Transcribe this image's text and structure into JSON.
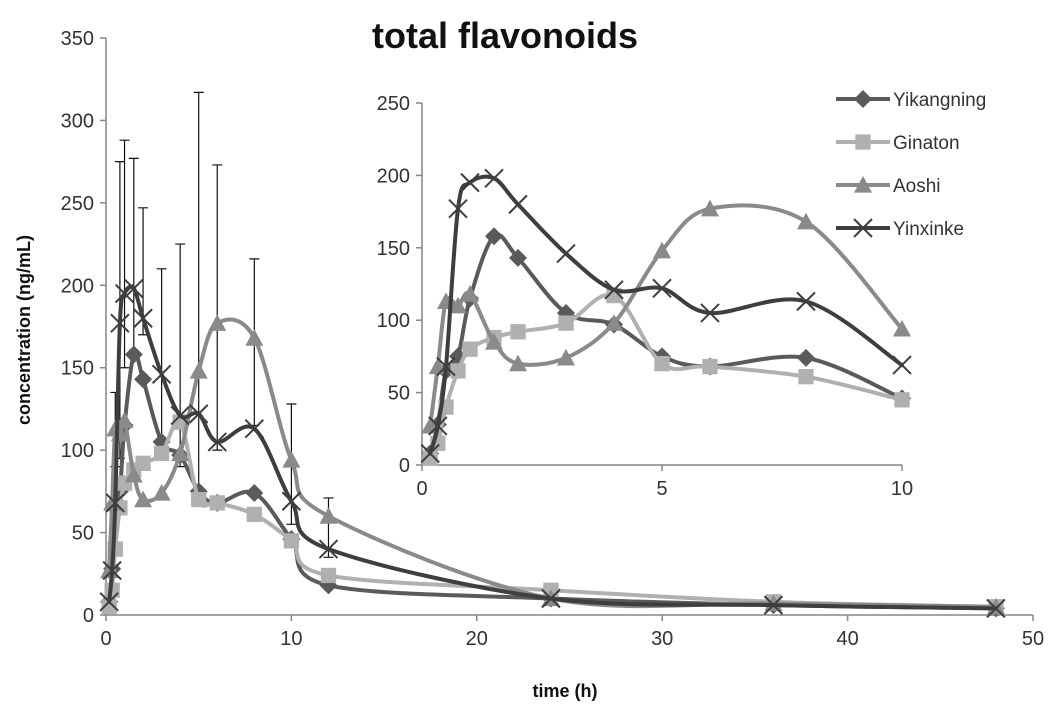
{
  "chart_data": [
    {
      "type": "line",
      "title": "total flavonoids",
      "xlabel": "time (h)",
      "ylabel": "concentration  (ng/mL)",
      "xlim": [
        0,
        50
      ],
      "ylim": [
        0,
        350
      ],
      "x_ticks": [
        "0",
        "10",
        "20",
        "30",
        "40",
        "50"
      ],
      "y_ticks": [
        "0",
        "50",
        "100",
        "150",
        "200",
        "250",
        "300",
        "350"
      ],
      "grid": false,
      "series": [
        {
          "name": "Yikangning",
          "marker": "diamond",
          "color": "#5a5a5a",
          "x": [
            0.17,
            0.33,
            0.5,
            0.75,
            1,
            1.5,
            2,
            3,
            4,
            5,
            6,
            8,
            10,
            12,
            24,
            36,
            48
          ],
          "y": [
            8,
            28,
            65,
            75,
            115,
            158,
            143,
            105,
            97,
            75,
            68,
            74,
            46,
            18,
            10,
            6,
            4
          ]
        },
        {
          "name": "Ginaton",
          "marker": "square",
          "color": "#b0b0b0",
          "x": [
            0.17,
            0.33,
            0.5,
            0.75,
            1,
            1.5,
            2,
            3,
            4,
            5,
            6,
            8,
            10,
            12,
            24,
            36,
            48
          ],
          "y": [
            5,
            15,
            40,
            65,
            80,
            88,
            92,
            98,
            117,
            70,
            68,
            61,
            45,
            24,
            15,
            8,
            5
          ]
        },
        {
          "name": "Aoshi",
          "marker": "triangle",
          "color": "#8a8a8a",
          "x": [
            0.17,
            0.33,
            0.5,
            0.75,
            1,
            1.5,
            2,
            3,
            4,
            5,
            6,
            8,
            10,
            12,
            24,
            36,
            48
          ],
          "y": [
            27,
            68,
            113,
            110,
            118,
            85,
            70,
            74,
            98,
            148,
            177,
            168,
            94,
            60,
            10,
            7,
            5
          ]
        },
        {
          "name": "Yinxinke",
          "marker": "x",
          "color": "#3e3e3e",
          "x": [
            0.17,
            0.33,
            0.5,
            0.75,
            1,
            1.5,
            2,
            3,
            4,
            5,
            6,
            8,
            10,
            12,
            24,
            36,
            48
          ],
          "y": [
            8,
            27,
            68,
            177,
            195,
            198,
            180,
            146,
            121,
            122,
            105,
            113,
            69,
            40,
            10,
            6,
            4
          ]
        }
      ],
      "error_bars": [
        {
          "x": 0.5,
          "low": 90,
          "high": 135
        },
        {
          "x": 0.75,
          "low": 95,
          "high": 275
        },
        {
          "x": 1,
          "low": 150,
          "high": 288
        },
        {
          "x": 1.5,
          "low": 160,
          "high": 277
        },
        {
          "x": 2,
          "low": 170,
          "high": 247
        },
        {
          "x": 3,
          "low": 95,
          "high": 210
        },
        {
          "x": 4,
          "low": 90,
          "high": 225
        },
        {
          "x": 5,
          "low": 75,
          "high": 317
        },
        {
          "x": 6,
          "low": 100,
          "high": 273
        },
        {
          "x": 8,
          "low": 115,
          "high": 216
        },
        {
          "x": 10,
          "low": 55,
          "high": 128
        },
        {
          "x": 12,
          "low": 35,
          "high": 71
        }
      ]
    },
    {
      "type": "line",
      "title": "",
      "xlabel": "",
      "ylabel": "",
      "xlim": [
        0,
        10
      ],
      "ylim": [
        0,
        250
      ],
      "x_ticks": [
        "0",
        "5",
        "10"
      ],
      "y_ticks": [
        "0",
        "50",
        "100",
        "150",
        "200",
        "250"
      ],
      "grid": false,
      "legend": {
        "position": "top-right",
        "entries": [
          "Yikangning",
          "Ginaton",
          "Aoshi",
          "Yinxinke"
        ]
      },
      "series": [
        {
          "name": "Yikangning",
          "marker": "diamond",
          "color": "#5a5a5a",
          "x": [
            0.17,
            0.33,
            0.5,
            0.75,
            1,
            1.5,
            2,
            3,
            4,
            5,
            6,
            8,
            10
          ],
          "y": [
            8,
            28,
            65,
            75,
            115,
            158,
            143,
            105,
            97,
            75,
            68,
            74,
            46
          ]
        },
        {
          "name": "Ginaton",
          "marker": "square",
          "color": "#b0b0b0",
          "x": [
            0.17,
            0.33,
            0.5,
            0.75,
            1,
            1.5,
            2,
            3,
            4,
            5,
            6,
            8,
            10
          ],
          "y": [
            5,
            15,
            40,
            65,
            80,
            88,
            92,
            98,
            117,
            70,
            68,
            61,
            45
          ]
        },
        {
          "name": "Aoshi",
          "marker": "triangle",
          "color": "#8a8a8a",
          "x": [
            0.17,
            0.33,
            0.5,
            0.75,
            1,
            1.5,
            2,
            3,
            4,
            5,
            6,
            8,
            10
          ],
          "y": [
            27,
            68,
            113,
            110,
            118,
            85,
            70,
            74,
            98,
            148,
            177,
            168,
            94
          ]
        },
        {
          "name": "Yinxinke",
          "marker": "x",
          "color": "#3e3e3e",
          "x": [
            0.17,
            0.33,
            0.5,
            0.75,
            1,
            1.5,
            2,
            3,
            4,
            5,
            6,
            8,
            10
          ],
          "y": [
            8,
            27,
            68,
            177,
            195,
            198,
            180,
            146,
            121,
            122,
            105,
            113,
            69
          ]
        }
      ]
    }
  ]
}
